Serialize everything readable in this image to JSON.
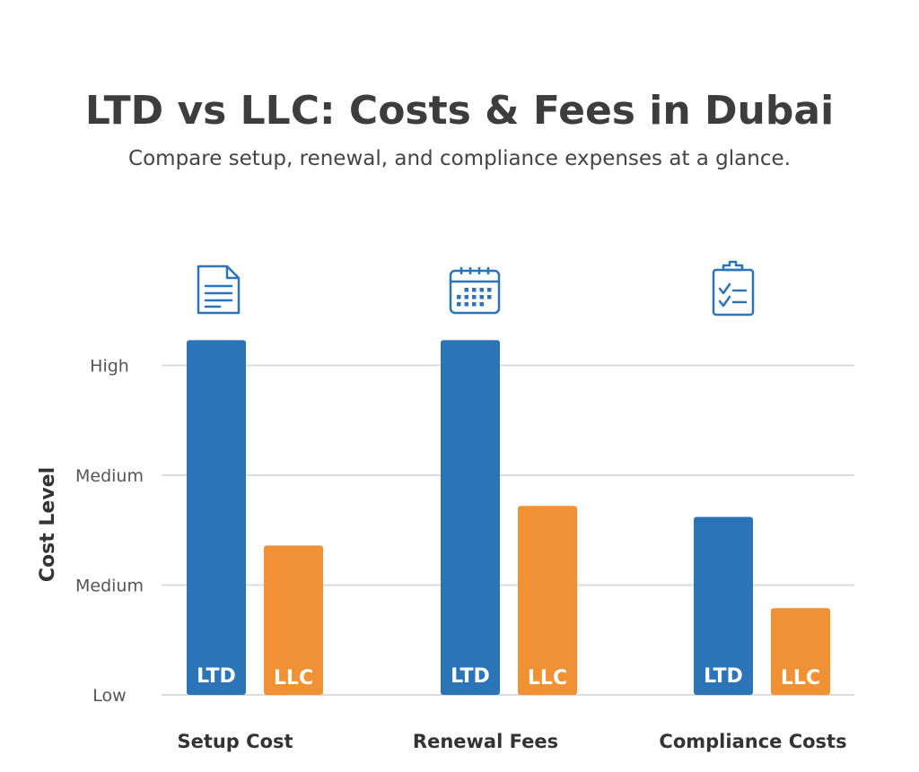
{
  "title": "LTD vs LLC: Costs & Fees in Dubai",
  "subtitle": "Compare setup, renewal, and compliance expenses at a glance.",
  "colors": {
    "LTD": "#2b74b8",
    "LLC": "#f09233"
  },
  "chart_data": {
    "type": "bar",
    "title": "LTD vs LLC: Costs & Fees in Dubai",
    "ylabel": "Cost Level",
    "xlabel": "",
    "yticks": [
      {
        "value": 0,
        "label": "Low"
      },
      {
        "value": 1,
        "label": "Medium"
      },
      {
        "value": 2,
        "label": "Medium"
      },
      {
        "value": 3,
        "label": "High"
      }
    ],
    "ylim": [
      0,
      3.3
    ],
    "grid": true,
    "categories": [
      "Setup Cost",
      "Renewal Fees",
      "Compliance Costs"
    ],
    "category_icons": [
      "document-icon",
      "calendar-icon",
      "checklist-clipboard-icon"
    ],
    "series": [
      {
        "name": "LTD",
        "values": [
          3.23,
          3.23,
          1.62
        ]
      },
      {
        "name": "LLC",
        "values": [
          1.36,
          1.72,
          0.79
        ]
      }
    ]
  }
}
